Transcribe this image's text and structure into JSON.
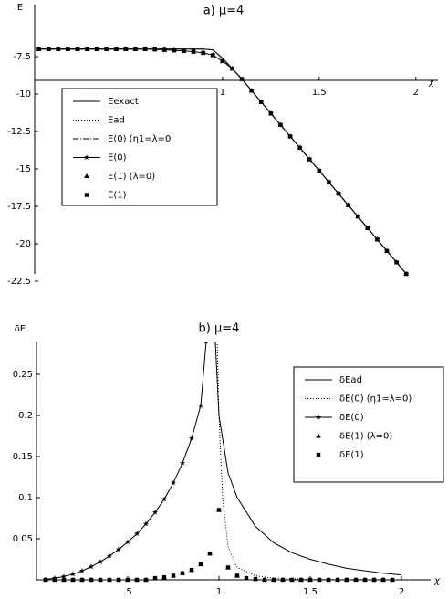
{
  "chart_data": [
    {
      "type": "line",
      "title": "a)  μ=4",
      "y_label": "E",
      "x_label": "χ",
      "xlim": [
        0,
        2.1
      ],
      "ylim": [
        -23,
        -4
      ],
      "xticks": [
        1,
        1.5,
        2
      ],
      "yticks": [
        -7.5,
        -10,
        -12.5,
        -15,
        -17.5,
        -20,
        -22.5
      ],
      "x": [
        0.05,
        0.1,
        0.15,
        0.2,
        0.25,
        0.3,
        0.35,
        0.4,
        0.45,
        0.5,
        0.55,
        0.6,
        0.65,
        0.7,
        0.75,
        0.8,
        0.85,
        0.9,
        0.95,
        1.0,
        1.05,
        1.1,
        1.15,
        1.2,
        1.25,
        1.3,
        1.35,
        1.4,
        1.45,
        1.5,
        1.55,
        1.6,
        1.65,
        1.7,
        1.75,
        1.8,
        1.85,
        1.9,
        1.95
      ],
      "series": [
        {
          "name": "Eexact",
          "color": "#000000",
          "style": "solid",
          "marker": null,
          "values": [
            -7.0,
            -7.0,
            -7.0,
            -7.0,
            -7.0,
            -7.0,
            -7.0,
            -7.0,
            -7.0,
            -7.0,
            -7.0,
            -7.0,
            -7.0,
            -7.0,
            -7.0,
            -7.0,
            -7.0,
            -7.0,
            -7.05,
            -7.6,
            -8.3,
            -9.0,
            -9.77,
            -10.53,
            -11.3,
            -12.06,
            -12.83,
            -13.59,
            -14.36,
            -15.12,
            -15.89,
            -16.65,
            -17.42,
            -18.18,
            -18.95,
            -19.71,
            -20.48,
            -21.24,
            -22.01
          ]
        },
        {
          "name": "Ead",
          "color": "#000000",
          "style": "dotted",
          "marker": null,
          "values": [
            -7.0,
            -7.0,
            -7.0,
            -7.0,
            -7.0,
            -7.0,
            -7.0,
            -7.0,
            -7.0,
            -7.0,
            -7.0,
            -7.0,
            -7.0,
            -7.0,
            -7.0,
            -7.0,
            -7.0,
            -7.0,
            -7.05,
            -7.6,
            -8.3,
            -9.0,
            -9.77,
            -10.53,
            -11.3,
            -12.06,
            -12.83,
            -13.59,
            -14.36,
            -15.12,
            -15.89,
            -16.65,
            -17.42,
            -18.18,
            -18.95,
            -19.71,
            -20.48,
            -21.24,
            -22.01
          ]
        },
        {
          "name": "E(0) (η1=λ=0",
          "color": "#000000",
          "style": "dashdot",
          "marker": null,
          "values": [
            -7.0,
            -7.0,
            -7.0,
            -7.0,
            -7.0,
            -7.0,
            -7.0,
            -7.0,
            -7.0,
            -7.0,
            -7.0,
            -7.0,
            -7.0,
            -7.0,
            -7.0,
            -7.0,
            -7.0,
            -7.0,
            -7.05,
            -7.6,
            -8.3,
            -9.0,
            -9.77,
            -10.53,
            -11.3,
            -12.06,
            -12.83,
            -13.59,
            -14.36,
            -15.12,
            -15.89,
            -16.65,
            -17.42,
            -18.18,
            -18.95,
            -19.71,
            -20.48,
            -21.24,
            -22.01
          ]
        },
        {
          "name": "E(0)",
          "color": "#000000",
          "style": "solid",
          "marker": "star",
          "values": [
            -7.0,
            -7.0,
            -7.0,
            -7.0,
            -7.0,
            -7.0,
            -7.0,
            -7.0,
            -7.0,
            -7.0,
            -7.0,
            -7.0,
            -7.02,
            -7.05,
            -7.08,
            -7.12,
            -7.17,
            -7.25,
            -7.4,
            -7.8,
            -8.3,
            -9.0,
            -9.77,
            -10.53,
            -11.3,
            -12.06,
            -12.83,
            -13.59,
            -14.36,
            -15.12,
            -15.89,
            -16.65,
            -17.42,
            -18.18,
            -18.95,
            -19.71,
            -20.48,
            -21.24,
            -22.01
          ]
        },
        {
          "name": "E(1) (λ=0)",
          "color": "#000000",
          "style": "none",
          "marker": "triangle",
          "values": [
            -7.0,
            -7.0,
            -7.0,
            -7.0,
            -7.0,
            -7.0,
            -7.0,
            -7.0,
            -7.0,
            -7.0,
            -7.0,
            -7.0,
            -7.02,
            -7.05,
            -7.08,
            -7.12,
            -7.17,
            -7.25,
            -7.4,
            -7.8,
            -8.3,
            -9.0,
            -9.77,
            -10.53,
            -11.3,
            -12.06,
            -12.83,
            -13.59,
            -14.36,
            -15.12,
            -15.89,
            -16.65,
            -17.42,
            -18.18,
            -18.95,
            -19.71,
            -20.48,
            -21.24,
            -22.01
          ]
        },
        {
          "name": "E(1)",
          "color": "#000000",
          "style": "none",
          "marker": "square",
          "values": [
            -7.0,
            -7.0,
            -7.0,
            -7.0,
            -7.0,
            -7.0,
            -7.0,
            -7.0,
            -7.0,
            -7.0,
            -7.0,
            -7.0,
            -7.02,
            -7.05,
            -7.08,
            -7.12,
            -7.17,
            -7.25,
            -7.4,
            -7.8,
            -8.3,
            -9.0,
            -9.77,
            -10.53,
            -11.3,
            -12.06,
            -12.83,
            -13.59,
            -14.36,
            -15.12,
            -15.89,
            -16.65,
            -17.42,
            -18.18,
            -18.95,
            -19.71,
            -20.48,
            -21.24,
            -22.01
          ]
        }
      ]
    },
    {
      "type": "line",
      "title": "b)  μ=4",
      "y_label": "δE",
      "x_label": "χ",
      "xlim": [
        0,
        2.15
      ],
      "ylim": [
        0,
        0.29
      ],
      "xticks": [
        {
          "value": 0.5,
          "label": ".5"
        },
        1,
        1.5,
        2
      ],
      "yticks": [
        0.05,
        0.1,
        0.15,
        0.2,
        0.25
      ],
      "series": [
        {
          "name": "δEad",
          "color": "#000000",
          "style": "solid",
          "marker": null,
          "x": [
            0.98,
            1.0,
            1.05,
            1.1,
            1.2,
            1.3,
            1.4,
            1.5,
            1.6,
            1.7,
            1.8,
            1.9,
            2.0
          ],
          "values": [
            0.29,
            0.2,
            0.13,
            0.1,
            0.065,
            0.045,
            0.033,
            0.025,
            0.019,
            0.014,
            0.011,
            0.008,
            0.006
          ]
        },
        {
          "name": "δE(0) (η1=λ=0)",
          "color": "#000000",
          "style": "dotted",
          "marker": null,
          "x": [
            0.99,
            1.0,
            1.02,
            1.05,
            1.1,
            1.2,
            1.3,
            1.5,
            2.0
          ],
          "values": [
            0.29,
            0.2,
            0.1,
            0.04,
            0.015,
            0.005,
            0.002,
            0.0005,
            0
          ]
        },
        {
          "name": "δE(0)",
          "color": "#000000",
          "style": "solid",
          "marker": "star",
          "x": [
            0.05,
            0.1,
            0.15,
            0.2,
            0.25,
            0.3,
            0.35,
            0.4,
            0.45,
            0.5,
            0.55,
            0.6,
            0.65,
            0.7,
            0.75,
            0.8,
            0.85,
            0.9,
            0.93
          ],
          "values": [
            0.0005,
            0.002,
            0.004,
            0.007,
            0.011,
            0.016,
            0.022,
            0.029,
            0.037,
            0.046,
            0.056,
            0.068,
            0.082,
            0.098,
            0.118,
            0.142,
            0.172,
            0.212,
            0.29
          ]
        },
        {
          "name": "δE(1) (λ=0)",
          "color": "#000000",
          "style": "none",
          "marker": "triangle",
          "x": [
            0.05,
            0.1,
            0.15,
            0.2,
            0.25,
            0.3,
            0.35,
            0.4,
            0.45,
            0.5,
            0.55,
            0.6,
            0.65,
            0.7,
            0.75,
            0.8,
            0.85,
            0.9,
            0.95,
            1.0,
            1.05,
            1.1,
            1.15,
            1.2,
            1.25,
            1.3,
            1.35,
            1.4,
            1.45,
            1.5,
            1.55,
            1.6,
            1.65,
            1.7,
            1.75,
            1.8,
            1.85,
            1.9,
            1.95
          ],
          "values": [
            0,
            0,
            0,
            0,
            0,
            0,
            0,
            0,
            0,
            0,
            0,
            0,
            0.002,
            0.003,
            0.005,
            0.008,
            0.012,
            0.019,
            0.032,
            0.085,
            0.015,
            0.005,
            0.002,
            0.001,
            0,
            0,
            0,
            0,
            0,
            0,
            0,
            0,
            0,
            0,
            0,
            0,
            0,
            0,
            0
          ]
        },
        {
          "name": "δE(1)",
          "color": "#000000",
          "style": "none",
          "marker": "square",
          "x": [
            0.05,
            0.1,
            0.15,
            0.2,
            0.25,
            0.3,
            0.35,
            0.4,
            0.45,
            0.5,
            0.55,
            0.6,
            0.65,
            0.7,
            0.75,
            0.8,
            0.85,
            0.9,
            0.95,
            1.0,
            1.05,
            1.1,
            1.15,
            1.2,
            1.25,
            1.3,
            1.35,
            1.4,
            1.45,
            1.5,
            1.55,
            1.6,
            1.65,
            1.7,
            1.75,
            1.8,
            1.85,
            1.9,
            1.95
          ],
          "values": [
            0,
            0,
            0,
            0,
            0,
            0,
            0,
            0,
            0,
            0,
            0,
            0,
            0.002,
            0.003,
            0.005,
            0.008,
            0.012,
            0.019,
            0.032,
            0.085,
            0.015,
            0.005,
            0.002,
            0.001,
            0,
            0,
            0,
            0,
            0,
            0,
            0,
            0,
            0,
            0,
            0,
            0,
            0,
            0,
            0
          ]
        }
      ]
    }
  ]
}
